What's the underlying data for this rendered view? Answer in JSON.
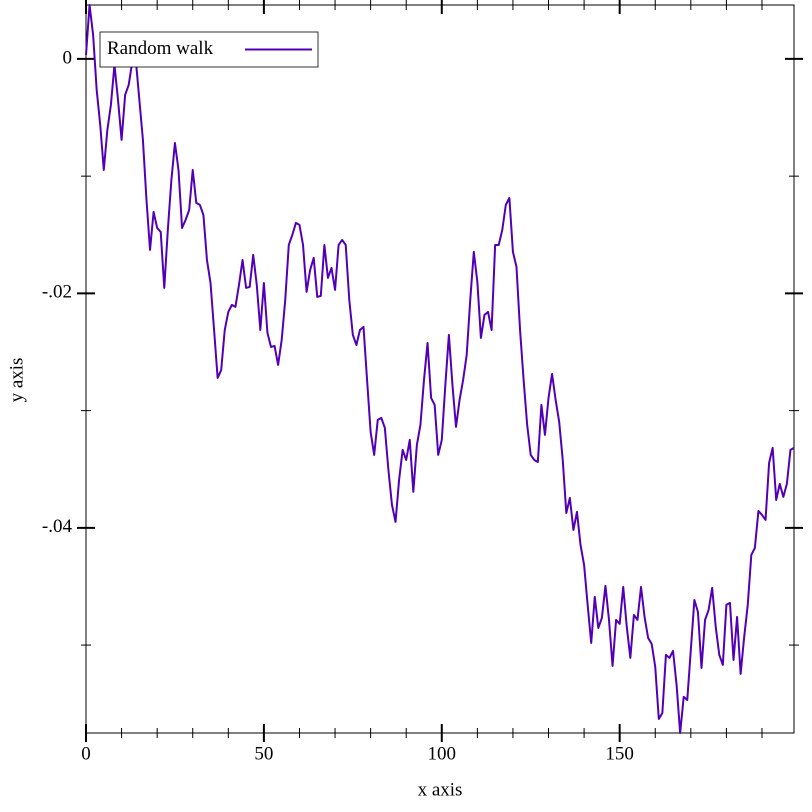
{
  "chart_data": {
    "type": "line",
    "x_label": "x axis",
    "y_label": "y axis",
    "legend": "top-left",
    "x": [
      0,
      1,
      2,
      3,
      4,
      5,
      6,
      7,
      8,
      9,
      10,
      11,
      12,
      13,
      14,
      15,
      16,
      17,
      18,
      19,
      20,
      21,
      22,
      23,
      24,
      25,
      26,
      27,
      28,
      29,
      30,
      31,
      32,
      33,
      34,
      35,
      36,
      37,
      38,
      39,
      40,
      41,
      42,
      43,
      44,
      45,
      46,
      47,
      48,
      49,
      50,
      51,
      52,
      53,
      54,
      55,
      56,
      57,
      58,
      59,
      60,
      61,
      62,
      63,
      64,
      65,
      66,
      67,
      68,
      69,
      70,
      71,
      72,
      73,
      74,
      75,
      76,
      77,
      78,
      79,
      80,
      81,
      82,
      83,
      84,
      85,
      86,
      87,
      88,
      89,
      90,
      91,
      92,
      93,
      94,
      95,
      96,
      97,
      98,
      99,
      100,
      101,
      102,
      103,
      104,
      105,
      106,
      107,
      108,
      109,
      110,
      111,
      112,
      113,
      114,
      115,
      116,
      117,
      118,
      119,
      120,
      121,
      122,
      123,
      124,
      125,
      126,
      127,
      128,
      129,
      130,
      131,
      132,
      133,
      134,
      135,
      136,
      137,
      138,
      139,
      140,
      141,
      142,
      143,
      144,
      145,
      146,
      147,
      148,
      149,
      150,
      151,
      152,
      153,
      154,
      155,
      156,
      157,
      158,
      159,
      160,
      161,
      162,
      163,
      164,
      165,
      166,
      167,
      168,
      169,
      170,
      171,
      172,
      173,
      174,
      175,
      176,
      177,
      178,
      179,
      180,
      181,
      182,
      183,
      184,
      185,
      186,
      187,
      188,
      189,
      190,
      191,
      192,
      193,
      194,
      195,
      196,
      197,
      198,
      199
    ],
    "series": [
      {
        "name": "Random walk",
        "color": "#5200b8",
        "values": [
          0.00034,
          0.0046,
          0.00205,
          -0.00264,
          -0.00563,
          -0.00947,
          -0.00606,
          -0.00392,
          -0.00051,
          -0.0035,
          -0.00691,
          -0.00307,
          -0.00222,
          -0.00026,
          -9e-05,
          -0.0035,
          -0.00691,
          -0.01203,
          -0.01629,
          -0.01305,
          -0.01442,
          -0.01476,
          -0.01953,
          -0.01459,
          -0.01032,
          -0.00717,
          -0.00947,
          -0.01442,
          -0.01373,
          -0.01288,
          -0.00947,
          -0.01228,
          -0.01245,
          -0.01331,
          -0.01715,
          -0.01911,
          -0.02312,
          -0.02721,
          -0.02653,
          -0.02312,
          -0.02158,
          -0.02098,
          -0.02115,
          -0.01928,
          -0.01715,
          -0.01953,
          -0.01945,
          -0.01672,
          -0.01928,
          -0.02312,
          -0.01911,
          -0.02337,
          -0.02457,
          -0.02448,
          -0.0261,
          -0.02397,
          -0.02056,
          -0.01587,
          -0.01501,
          -0.01399,
          -0.01416,
          -0.01587,
          -0.01987,
          -0.018,
          -0.01697,
          -0.0203,
          -0.02022,
          -0.01587,
          -0.01868,
          -0.01783,
          -0.0197,
          -0.01587,
          -0.01544,
          -0.01587,
          -0.02056,
          -0.02354,
          -0.0244,
          -0.02312,
          -0.02286,
          -0.02738,
          -0.03182,
          -0.03378,
          -0.03079,
          -0.03062,
          -0.03148,
          -0.03506,
          -0.03804,
          -0.03949,
          -0.03591,
          -0.03335,
          -0.03421,
          -0.0325,
          -0.03693,
          -0.03293,
          -0.03122,
          -0.02738,
          -0.02423,
          -0.02892,
          -0.02951,
          -0.03378,
          -0.0325,
          -0.02781,
          -0.02354,
          -0.02781,
          -0.03139,
          -0.02909,
          -0.02738,
          -0.02525,
          -0.02056,
          -0.01646,
          -0.01902,
          -0.0238,
          -0.02184,
          -0.02158,
          -0.02312,
          -0.01587,
          -0.01587,
          -0.01459,
          -0.01245,
          -0.01186,
          -0.01646,
          -0.01774,
          -0.02312,
          -0.02738,
          -0.03122,
          -0.03378,
          -0.03421,
          -0.03438,
          -0.02951,
          -0.03207,
          -0.02892,
          -0.02687,
          -0.02909,
          -0.03096,
          -0.03421,
          -0.03873,
          -0.03745,
          -0.04018,
          -0.03864,
          -0.04146,
          -0.04316,
          -0.04657,
          -0.04982,
          -0.04589,
          -0.04854,
          -0.04768,
          -0.04495,
          -0.04785,
          -0.05178,
          -0.04785,
          -0.04819,
          -0.04504,
          -0.04845,
          -0.05109,
          -0.04743,
          -0.04785,
          -0.04504,
          -0.0476,
          -0.04939,
          -0.0499,
          -0.05186,
          -0.0563,
          -0.05579,
          -0.05084,
          -0.05109,
          -0.0505,
          -0.0534,
          -0.0575,
          -0.05442,
          -0.05468,
          -0.05041,
          -0.04615,
          -0.04717,
          -0.05195,
          -0.04785,
          -0.047,
          -0.04512,
          -0.04845,
          -0.05084,
          -0.05169,
          -0.04657,
          -0.0464,
          -0.05127,
          -0.0476,
          -0.05246,
          -0.0493,
          -0.04657,
          -0.04231,
          -0.04171,
          -0.03856,
          -0.0389,
          -0.03932,
          -0.03446,
          -0.03318,
          -0.03762,
          -0.03625,
          -0.03736,
          -0.03625,
          -0.03335,
          -0.03318
        ]
      }
    ],
    "xlim": [
      0,
      199
    ],
    "ylim": [
      -0.0575,
      0.0046
    ],
    "xticks": [
      0,
      50,
      100,
      150
    ],
    "xticks_minor": [
      10,
      20,
      30,
      40,
      60,
      70,
      80,
      90,
      110,
      120,
      130,
      140,
      160,
      170,
      180,
      190
    ],
    "yticks": [
      0,
      {
        "value": -0.02,
        "label": "-.02"
      },
      {
        "value": -0.04,
        "label": "-.04"
      }
    ],
    "yticks_minor": [
      -0.01,
      -0.03,
      -0.05
    ]
  }
}
